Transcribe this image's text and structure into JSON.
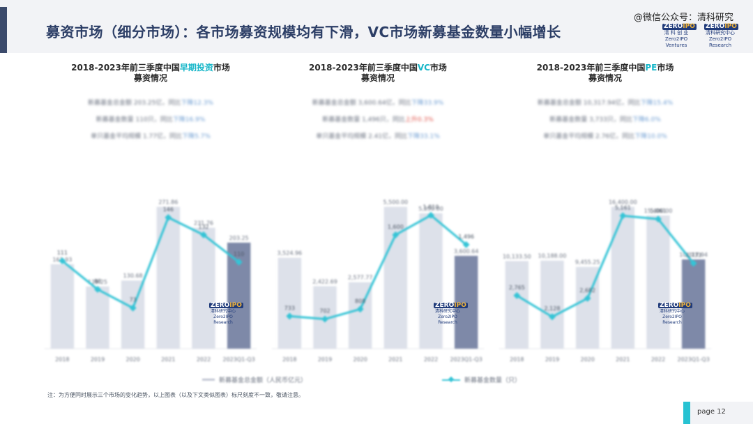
{
  "header": {
    "title": "募资市场（细分市场）：各市场募资规模均有下滑，VC市场新募基金数量小幅增长",
    "watermark": "@微信公众号：清科研究",
    "logo1_word_a": "ZERO",
    "logo1_word_b": "IPO",
    "logo1_cn": "清 科 创 业",
    "logo1_en": "Zero2IPO Ventures",
    "logo2_word_a": "ZERO",
    "logo2_word_b": "IPO",
    "logo2_cn": "清科研究中心",
    "logo2_en": "Zero2IPO Research"
  },
  "panels": [
    {
      "title_prefix": "2018-2023年前三季度中国",
      "title_highlight": "早期投资",
      "title_suffix": "市场",
      "title_line2": "募资情况",
      "summary": [
        {
          "text": "新募基金总金额 203.25亿，同比",
          "trend": "下降12.3%",
          "dir": "neg"
        },
        {
          "text": "新募基金数量 110只，同比",
          "trend": "下降16.9%",
          "dir": "neg"
        },
        {
          "text": "单只基金平均规模 1.77亿，同比",
          "trend": "下降5.7%",
          "dir": "neg"
        }
      ],
      "stamp_a": "ZERO",
      "stamp_b": "IPO",
      "stamp_cn": "清科研究中心",
      "stamp_en": "Zero2IPO Research"
    },
    {
      "title_prefix": "2018-2023年前三季度中国",
      "title_highlight": "VC",
      "title_suffix": "市场",
      "title_line2": "募资情况",
      "summary": [
        {
          "text": "新募基金总金额 3,600.64亿，同比",
          "trend": "下降33.9%",
          "dir": "neg"
        },
        {
          "text": "新募基金数量 1,496只，同比",
          "trend": "上升0.3%",
          "dir": "pos"
        },
        {
          "text": "单只基金平均规模 2.41亿，同比",
          "trend": "下降33.1%",
          "dir": "neg"
        }
      ],
      "stamp_a": "ZERO",
      "stamp_b": "IPO",
      "stamp_cn": "清科研究中心",
      "stamp_en": "Zero2IPO Research"
    },
    {
      "title_prefix": "2018-2023年前三季度中国",
      "title_highlight": "PE",
      "title_suffix": "市场",
      "title_line2": "募资情况",
      "summary": [
        {
          "text": "新募基金总金额 10,317.94亿，同比",
          "trend": "下降15.4%",
          "dir": "neg"
        },
        {
          "text": "新募基金数量 3,733只，同比",
          "trend": "下降6.0%",
          "dir": "neg"
        },
        {
          "text": "单只基金平均规模 2.76亿，同比",
          "trend": "下降10.0%",
          "dir": "neg"
        }
      ],
      "stamp_a": "ZERO",
      "stamp_b": "IPO",
      "stamp_cn": "清科研究中心",
      "stamp_en": "Zero2IPO Research"
    }
  ],
  "legend": {
    "bar_label": "新募基金总金额（人民币亿元）",
    "line_label": "新募基金数量（只）"
  },
  "note": "注：为方便同时展示三个市场的变化趋势，以上图表（以及下文类似图表）标尺刻度不一致，敬请注意。",
  "page": {
    "label": "page  12"
  },
  "colors": {
    "bar": "#dde1ea",
    "bar_highlight": "#7e89a8",
    "line": "#35c4d6",
    "accent": "#27c2d2"
  },
  "chart_data": [
    {
      "type": "bar",
      "categories": [
        "2018",
        "2019",
        "2020",
        "2021",
        "2022",
        "2023Q1-Q3"
      ],
      "series": [
        {
          "name": "新募基金总金额（人民币亿元）",
          "values": [
            161.93,
            119.25,
            130.68,
            271.86,
            231.76,
            203.25
          ]
        },
        {
          "name": "新募基金数量（只）",
          "values": [
            111,
            88,
            73,
            146,
            132,
            110
          ]
        }
      ]
    },
    {
      "type": "bar",
      "categories": [
        "2018",
        "2019",
        "2020",
        "2021",
        "2022",
        "2023Q1-Q3"
      ],
      "series": [
        {
          "name": "新募基金总金额（人民币亿元）",
          "values": [
            3524.96,
            2422.69,
            2577.77,
            5500.0,
            5250.0,
            3600.64
          ]
        },
        {
          "name": "新募基金数量（只）",
          "values": [
            733,
            702,
            808,
            1600,
            1810,
            1496
          ]
        }
      ]
    },
    {
      "type": "bar",
      "categories": [
        "2018",
        "2019",
        "2020",
        "2021",
        "2022",
        "2023Q1-Q3"
      ],
      "series": [
        {
          "name": "新募基金总金额（人民币亿元）",
          "values": [
            10133.5,
            10188.0,
            9455.25,
            16400.0,
            15400.0,
            10317.94
          ]
        },
        {
          "name": "新募基金数量（只）",
          "values": [
            2765,
            2128,
            2682,
            5161,
            5061,
            3733
          ]
        }
      ]
    }
  ]
}
